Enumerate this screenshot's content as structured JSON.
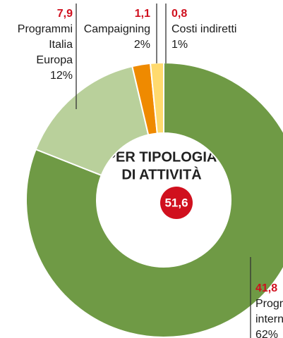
{
  "chart_data": {
    "type": "donut",
    "title": [
      "PER TIPOLOGIA",
      "DI ATTIVITÀ"
    ],
    "total": 51.6,
    "total_label": "51,6",
    "categories": [
      [
        "Programmi",
        "internazionali"
      ],
      [
        "Programmi",
        "Italia",
        "Europa"
      ],
      [
        "Campaigning"
      ],
      [
        "Costi indiretti"
      ]
    ],
    "values": [
      41.8,
      7.9,
      1.1,
      0.8
    ],
    "value_labels": [
      "41,8",
      "7,9",
      "1,1",
      "0,8"
    ],
    "share_labels": [
      "62%",
      "12%",
      "2%",
      "1%"
    ],
    "colors": [
      "#6f9a45",
      "#b9d09b",
      "#ef8a00",
      "#ffda6e"
    ]
  }
}
